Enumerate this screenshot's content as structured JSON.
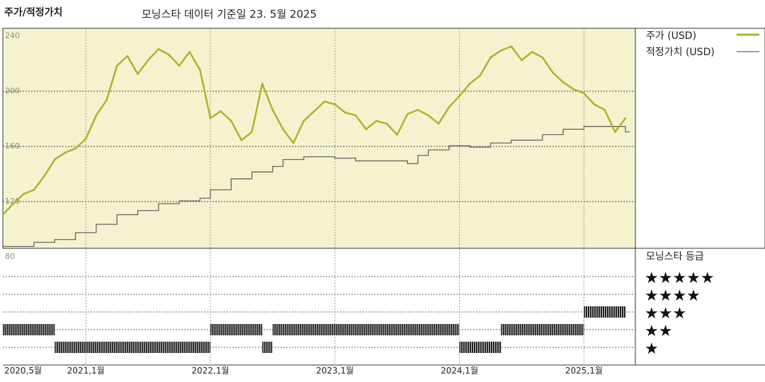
{
  "header": {
    "left_title": "주가/적정가치",
    "subtitle": "모닝스타 데이터 기준일 23. 5월 2025"
  },
  "colors": {
    "price_line": "#a9b62a",
    "fair_value_line": "#666666",
    "upper_panel_bg": "#f5f3cf",
    "rating_bar": "#222222"
  },
  "chart_data": [
    {
      "type": "line",
      "title": "",
      "ylabel": "",
      "ylim": [
        80,
        240
      ],
      "y_ticks": [
        "240",
        "200",
        "160",
        "120",
        "80"
      ],
      "x_ticks": [
        "2020,5월",
        "2021,1월",
        "2022,1월",
        "2023,1월",
        "2024,1월",
        "2025,1월"
      ],
      "series": [
        {
          "name": "주가 (USD)",
          "x": [
            "2020-05",
            "2020-06",
            "2020-07",
            "2020-08",
            "2020-09",
            "2020-10",
            "2020-11",
            "2020-12",
            "2021-01",
            "2021-02",
            "2021-03",
            "2021-04",
            "2021-05",
            "2021-06",
            "2021-07",
            "2021-08",
            "2021-09",
            "2021-10",
            "2021-11",
            "2021-12",
            "2022-01",
            "2022-02",
            "2022-03",
            "2022-04",
            "2022-05",
            "2022-06",
            "2022-07",
            "2022-08",
            "2022-09",
            "2022-10",
            "2022-11",
            "2022-12",
            "2023-01",
            "2023-02",
            "2023-03",
            "2023-04",
            "2023-05",
            "2023-06",
            "2023-07",
            "2023-08",
            "2023-09",
            "2023-10",
            "2023-11",
            "2023-12",
            "2024-01",
            "2024-02",
            "2024-03",
            "2024-04",
            "2024-05",
            "2024-06",
            "2024-07",
            "2024-08",
            "2024-09",
            "2024-10",
            "2024-11",
            "2024-12",
            "2025-01",
            "2025-02",
            "2025-03",
            "2025-04",
            "2025-05"
          ],
          "values": [
            110,
            118,
            125,
            128,
            138,
            150,
            155,
            158,
            165,
            182,
            193,
            218,
            225,
            212,
            222,
            230,
            226,
            218,
            228,
            215,
            180,
            185,
            178,
            164,
            170,
            205,
            186,
            172,
            162,
            178,
            185,
            192,
            190,
            184,
            182,
            172,
            178,
            176,
            168,
            183,
            186,
            182,
            176,
            188,
            196,
            205,
            211,
            224,
            229,
            232,
            222,
            228,
            224,
            213,
            206,
            201,
            198,
            190,
            186,
            170,
            180
          ]
        },
        {
          "name": "적정가치 (USD)",
          "x": [
            "2020-05",
            "2020-08",
            "2020-10",
            "2020-12",
            "2021-02",
            "2021-04",
            "2021-06",
            "2021-08",
            "2021-10",
            "2021-12",
            "2022-01",
            "2022-03",
            "2022-05",
            "2022-07",
            "2022-08",
            "2022-10",
            "2023-01",
            "2023-03",
            "2023-05",
            "2023-08",
            "2023-09",
            "2023-10",
            "2023-12",
            "2024-02",
            "2024-04",
            "2024-06",
            "2024-09",
            "2024-11",
            "2025-01",
            "2025-03",
            "2025-05"
          ],
          "values": [
            87,
            90,
            92,
            97,
            103,
            110,
            113,
            118,
            120,
            122,
            128,
            136,
            141,
            145,
            150,
            152,
            151,
            149,
            149,
            147,
            153,
            157,
            160,
            159,
            162,
            164,
            168,
            172,
            174,
            174,
            170
          ]
        }
      ],
      "legend_position": "right"
    },
    {
      "type": "bar",
      "title": "모닝스타 등급",
      "categories": [
        "★★★★★",
        "★★★★",
        "★★★",
        "★★",
        "★"
      ],
      "periods": [
        {
          "rating": 2,
          "start": "2020-05",
          "end": "2020-10"
        },
        {
          "rating": 1,
          "start": "2020-10",
          "end": "2022-01"
        },
        {
          "rating": 2,
          "start": "2022-01",
          "end": "2022-06"
        },
        {
          "rating": 1,
          "start": "2022-06",
          "end": "2022-07"
        },
        {
          "rating": 2,
          "start": "2022-07",
          "end": "2024-01"
        },
        {
          "rating": 1,
          "start": "2024-01",
          "end": "2024-05"
        },
        {
          "rating": 2,
          "start": "2024-05",
          "end": "2025-01"
        },
        {
          "rating": 3,
          "start": "2025-01",
          "end": "2025-05"
        }
      ]
    }
  ]
}
